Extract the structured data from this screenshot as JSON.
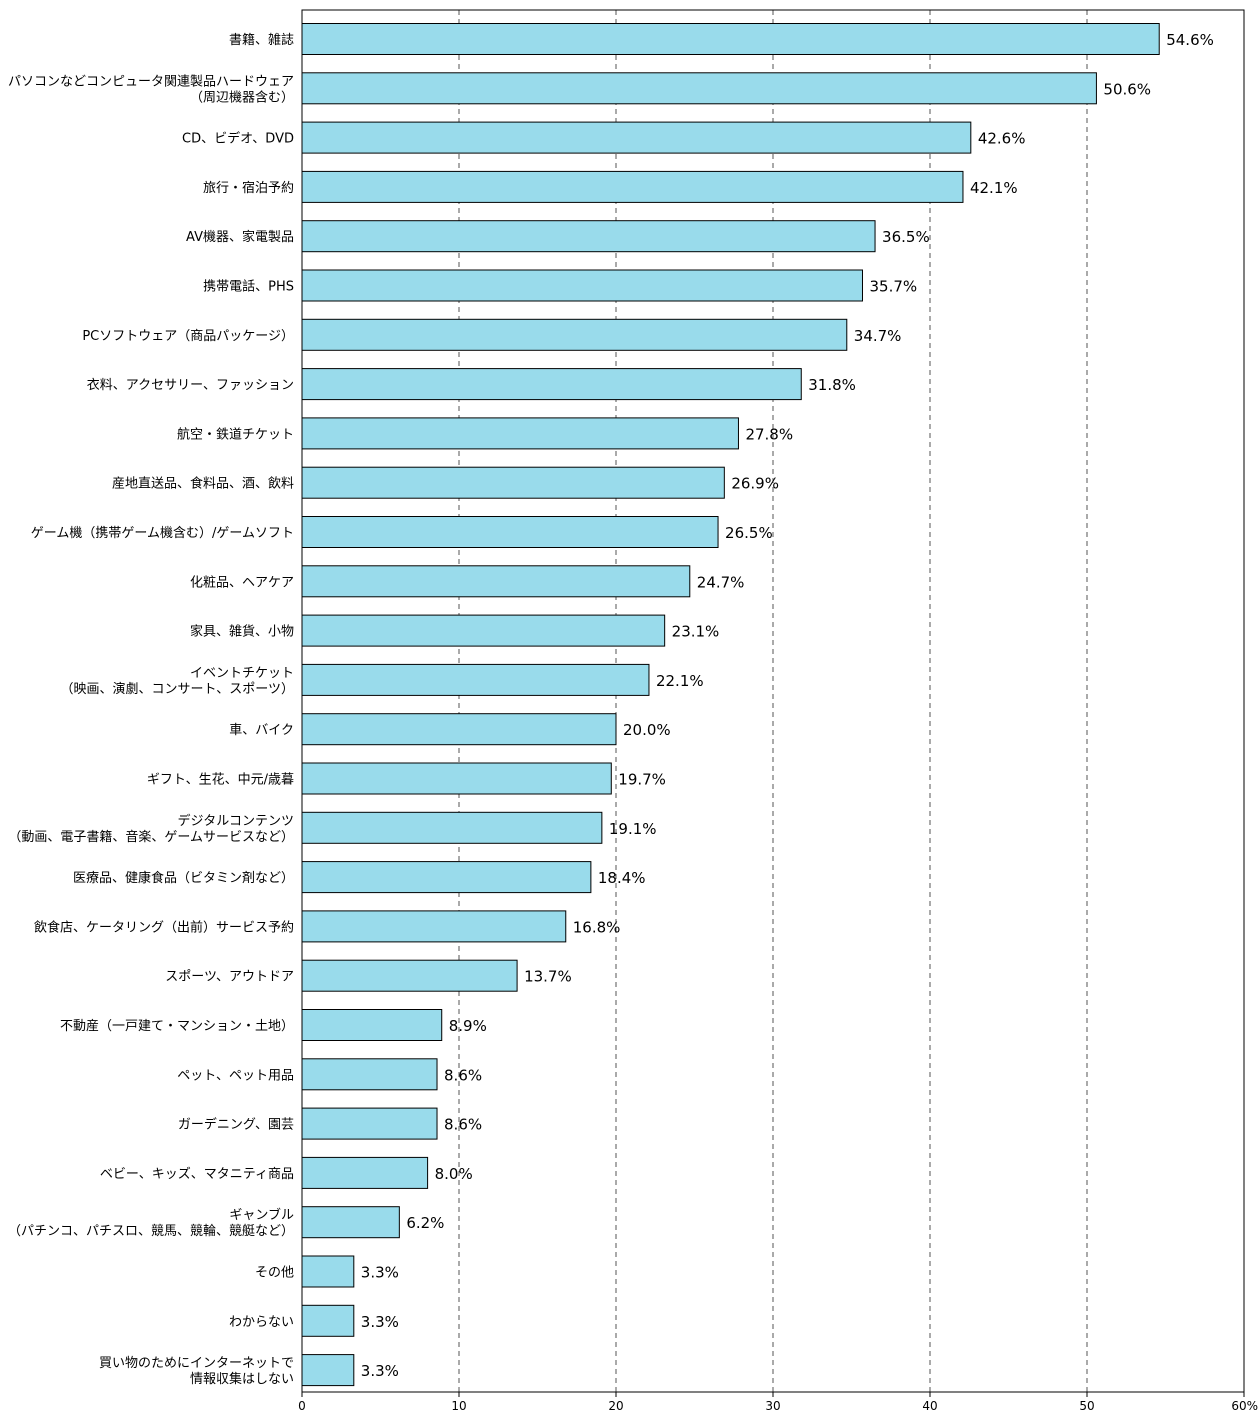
{
  "chart_data": {
    "type": "bar",
    "orientation": "horizontal",
    "categories": [
      [
        "書籍、雑誌"
      ],
      [
        "パソコンなどコンピュータ関連製品ハードウェア",
        "（周辺機器含む）"
      ],
      [
        "CD、ビデオ、DVD"
      ],
      [
        "旅行・宿泊予約"
      ],
      [
        "AV機器、家電製品"
      ],
      [
        "携帯電話、PHS"
      ],
      [
        "PCソフトウェア（商品パッケージ）"
      ],
      [
        "衣料、アクセサリー、ファッション"
      ],
      [
        "航空・鉄道チケット"
      ],
      [
        "産地直送品、食料品、酒、飲料"
      ],
      [
        "ゲーム機（携帯ゲーム機含む）/ゲームソフト"
      ],
      [
        "化粧品、ヘアケア"
      ],
      [
        "家具、雑貨、小物"
      ],
      [
        "イベントチケット",
        "（映画、演劇、コンサート、スポーツ）"
      ],
      [
        "車、バイク"
      ],
      [
        "ギフト、生花、中元/歳暮"
      ],
      [
        "デジタルコンテンツ",
        "（動画、電子書籍、音楽、ゲームサービスなど）"
      ],
      [
        "医療品、健康食品（ビタミン剤など）"
      ],
      [
        "飲食店、ケータリング（出前）サービス予約"
      ],
      [
        "スポーツ、アウトドア"
      ],
      [
        "不動産（一戸建て・マンション・土地）"
      ],
      [
        "ペット、ペット用品"
      ],
      [
        "ガーデニング、園芸"
      ],
      [
        "ベビー、キッズ、マタニティ商品"
      ],
      [
        "ギャンブル",
        "（パチンコ、パチスロ、競馬、競輪、競艇など）"
      ],
      [
        "その他"
      ],
      [
        "わからない"
      ],
      [
        "買い物のためにインターネットで",
        "情報収集はしない"
      ]
    ],
    "values": [
      54.6,
      50.6,
      42.6,
      42.1,
      36.5,
      35.7,
      34.7,
      31.8,
      27.8,
      26.9,
      26.5,
      24.7,
      23.1,
      22.1,
      20.0,
      19.7,
      19.1,
      18.4,
      16.8,
      13.7,
      8.9,
      8.6,
      8.6,
      8.0,
      6.2,
      3.3,
      3.3,
      3.3
    ],
    "value_labels": [
      "54.6%",
      "50.6%",
      "42.6%",
      "42.1%",
      "36.5%",
      "35.7%",
      "34.7%",
      "31.8%",
      "27.8%",
      "26.9%",
      "26.5%",
      "24.7%",
      "23.1%",
      "22.1%",
      "20.0%",
      "19.7%",
      "19.1%",
      "18.4%",
      "16.8%",
      "13.7%",
      "8.9%",
      "8.6%",
      "8.6%",
      "8.0%",
      "6.2%",
      "3.3%",
      "3.3%",
      "3.3%"
    ],
    "xlim": [
      0,
      60
    ],
    "x_ticks": [
      0,
      10,
      20,
      30,
      40,
      50,
      60
    ],
    "x_tick_labels": [
      "0",
      "10",
      "20",
      "30",
      "40",
      "50",
      "60%"
    ],
    "grid": "vertical dashed",
    "bar_color": "#99dbeb",
    "bar_edge_color": "#000000",
    "grid_color": "#555555"
  }
}
